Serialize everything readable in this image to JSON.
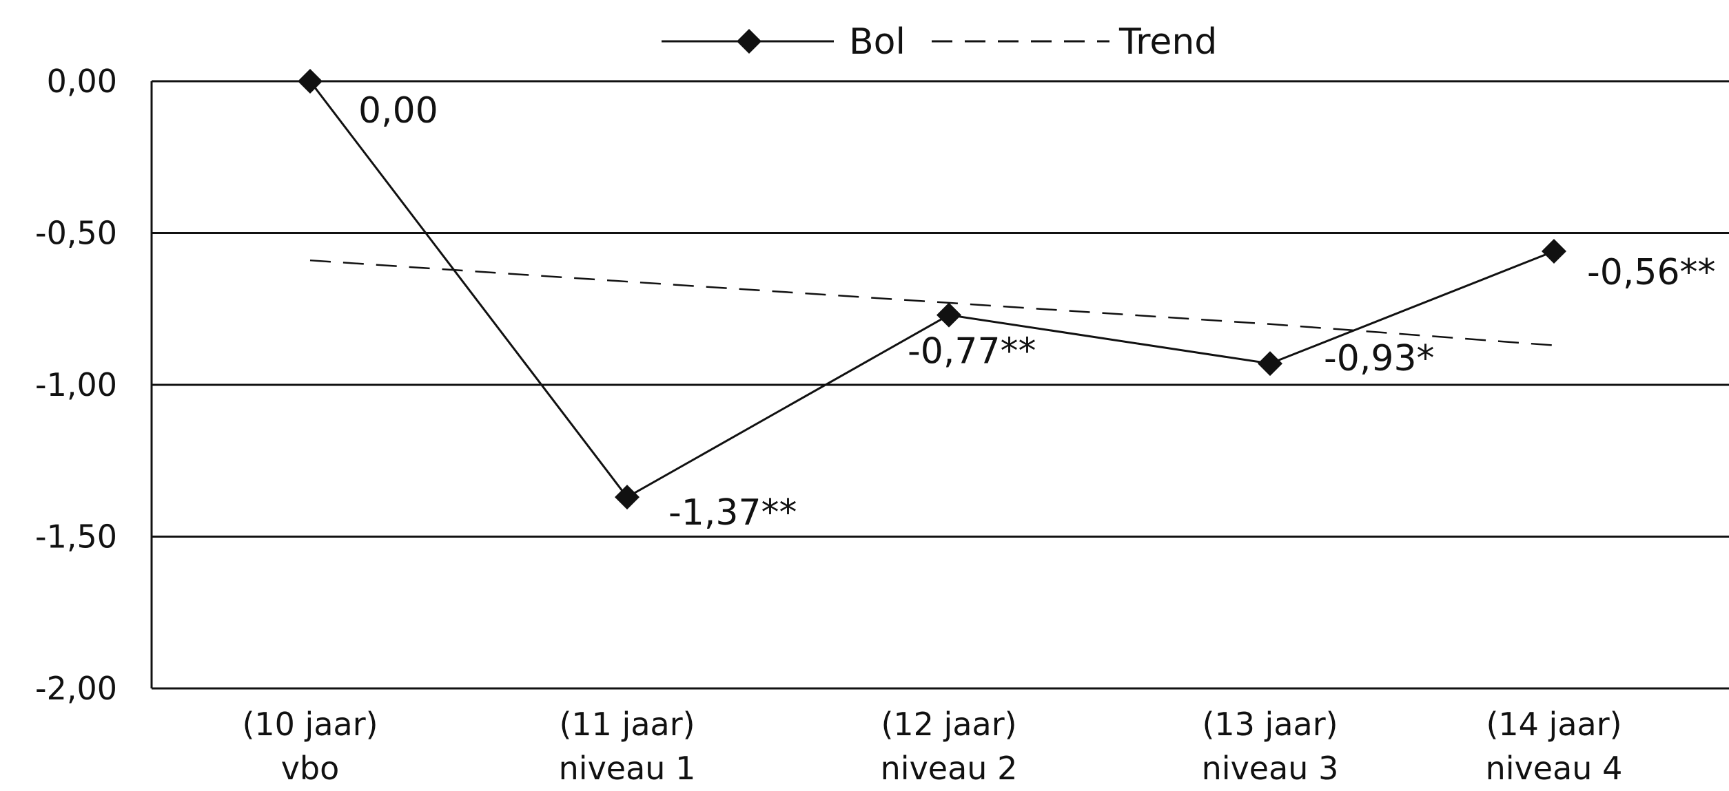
{
  "chart_data": {
    "type": "line",
    "categories": [
      {
        "top": "(10 jaar)",
        "bottom": "vbo"
      },
      {
        "top": "(11 jaar)",
        "bottom": "niveau 1"
      },
      {
        "top": "(12 jaar)",
        "bottom": "niveau 2"
      },
      {
        "top": "(13 jaar)",
        "bottom": "niveau 3"
      },
      {
        "top": "(14 jaar)",
        "bottom": "niveau 4"
      }
    ],
    "series": [
      {
        "name": "Bol",
        "values": [
          0.0,
          -1.37,
          -0.77,
          -0.93,
          -0.56
        ],
        "data_labels": [
          "0,00",
          "-1,37**",
          "-0,77**",
          "-0,93*",
          "-0,56**"
        ],
        "style": "solid-diamond",
        "color": "#111111"
      },
      {
        "name": "Trend",
        "values": [
          -0.59,
          -0.66,
          -0.73,
          -0.8,
          -0.87
        ],
        "style": "dashed",
        "color": "#111111"
      }
    ],
    "y_ticks": [
      0,
      -0.5,
      -1,
      -1.5,
      -2
    ],
    "y_tick_labels": [
      "0,00",
      "-0,50",
      "-1,00",
      "-1,50",
      "-2,00"
    ],
    "ylim": [
      -2,
      0
    ],
    "grid": true,
    "legend_position": "top-center",
    "title": "",
    "xlabel": "",
    "ylabel": ""
  }
}
